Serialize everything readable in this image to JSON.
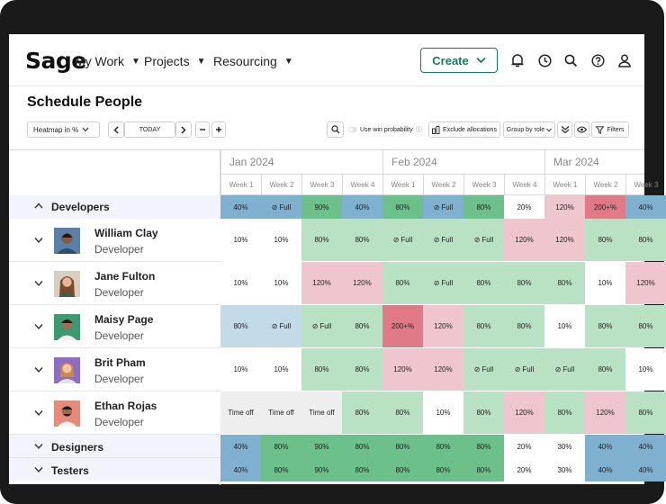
{
  "nav": {
    "logo": "Sage",
    "items": [
      "My Work",
      "Projects",
      "Resourcing"
    ],
    "create_label": "Create",
    "icons": [
      "bell-icon",
      "clock-icon",
      "search-icon",
      "help-icon",
      "user-icon"
    ]
  },
  "page": {
    "title": "Schedule People"
  },
  "toolbar": {
    "view_select": "Heatmap in %",
    "today_label": "TODAY",
    "win_probability_label": "Use win probability",
    "exclude_allocations_label": "Exclude allocations",
    "group_by_label": "Group by role",
    "filters_label": "Filters"
  },
  "calendar": {
    "months": [
      "Jan 2024",
      "Feb 2024",
      "Mar 2024"
    ],
    "weeks": [
      "Week 1",
      "Week 2",
      "Week 3",
      "Week 4",
      "Week 1",
      "Week 2",
      "Week 3",
      "Week 4",
      "Week 1",
      "Week 2",
      "Week 3"
    ]
  },
  "groups": {
    "developers": {
      "label": "Developers",
      "cells": [
        "40%",
        "Full",
        "90%",
        "40%",
        "80%",
        "Full",
        "80%",
        "20%",
        "120%",
        "200+%",
        "40%"
      ]
    },
    "designers": {
      "label": "Designers",
      "cells": [
        "40%",
        "80%",
        "90%",
        "80%",
        "80%",
        "80%",
        "80%",
        "20%",
        "30%",
        "40%",
        "40%"
      ]
    },
    "testers": {
      "label": "Testers",
      "cells": [
        "40%",
        "80%",
        "90%",
        "80%",
        "80%",
        "80%",
        "80%",
        "20%",
        "30%",
        "40%",
        "40%"
      ]
    }
  },
  "people": [
    {
      "name": "William Clay",
      "role": "Developer",
      "cells": [
        "10%",
        "10%",
        "80%",
        "80%",
        "Full",
        "Full",
        "Full",
        "120%",
        "120%",
        "80%",
        "80%"
      ]
    },
    {
      "name": "Jane Fulton",
      "role": "Developer",
      "cells": [
        "10%",
        "10%",
        "120%",
        "120%",
        "80%",
        "Full",
        "80%",
        "80%",
        "80%",
        "10%",
        "120%"
      ]
    },
    {
      "name": "Maisy Page",
      "role": "Developer",
      "cells": [
        "80%",
        "Full",
        "Full",
        "80%",
        "200+%",
        "120%",
        "80%",
        "80%",
        "10%",
        "80%",
        "80%"
      ]
    },
    {
      "name": "Brit Pham",
      "role": "Developer",
      "cells": [
        "10%",
        "10%",
        "80%",
        "80%",
        "120%",
        "120%",
        "Full",
        "Full",
        "Full",
        "80%",
        "10%"
      ]
    },
    {
      "name": "Ethan Rojas",
      "role": "Developer",
      "cells": [
        "Time off",
        "Time off",
        "Time off",
        "80%",
        "80%",
        "10%",
        "80%",
        "120%",
        "80%",
        "120%",
        "80%"
      ]
    }
  ],
  "colors": {
    "blue": "#7fb0cf",
    "light_blue": "#c3dbe9",
    "green": "#6cc08a",
    "light_green": "#b9e2c5",
    "pink": "#f0c6ce",
    "red": "#df7a86",
    "gray": "#eeeeee",
    "brand": "#0f7f5b"
  }
}
